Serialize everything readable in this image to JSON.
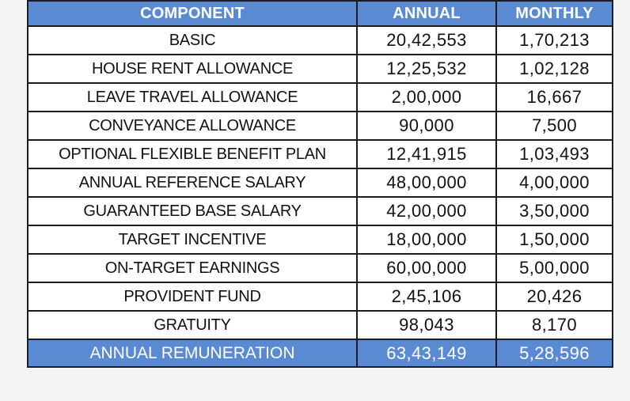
{
  "table": {
    "headers": {
      "component": "COMPONENT",
      "annual": "ANNUAL",
      "monthly": "MONTHLY"
    },
    "rows": [
      {
        "component": "BASIC",
        "annual": "20,42,553",
        "monthly": "1,70,213"
      },
      {
        "component": "HOUSE RENT ALLOWANCE",
        "annual": "12,25,532",
        "monthly": "1,02,128"
      },
      {
        "component": "LEAVE TRAVEL ALLOWANCE",
        "annual": "2,00,000",
        "monthly": "16,667"
      },
      {
        "component": "CONVEYANCE ALLOWANCE",
        "annual": "90,000",
        "monthly": "7,500"
      },
      {
        "component": "OPTIONAL FLEXIBLE BENEFIT PLAN",
        "annual": "12,41,915",
        "monthly": "1,03,493"
      },
      {
        "component": "ANNUAL REFERENCE SALARY",
        "annual": "48,00,000",
        "monthly": "4,00,000"
      },
      {
        "component": "GUARANTEED BASE SALARY",
        "annual": "42,00,000",
        "monthly": "3,50,000"
      },
      {
        "component": "TARGET INCENTIVE",
        "annual": "18,00,000",
        "monthly": "1,50,000"
      },
      {
        "component": "ON-TARGET EARNINGS",
        "annual": "60,00,000",
        "monthly": "5,00,000"
      },
      {
        "component": "PROVIDENT FUND",
        "annual": "2,45,106",
        "monthly": "20,426"
      },
      {
        "component": "GRATUITY",
        "annual": "98,043",
        "monthly": "8,170"
      }
    ],
    "total": {
      "component": "ANNUAL REMUNERATION",
      "annual": "63,43,149",
      "monthly": "5,28,596"
    }
  },
  "colors": {
    "header_background": "#5a8ad1",
    "header_text": "#ffffff",
    "body_text": "#111111",
    "border": "#1c1c1c"
  }
}
